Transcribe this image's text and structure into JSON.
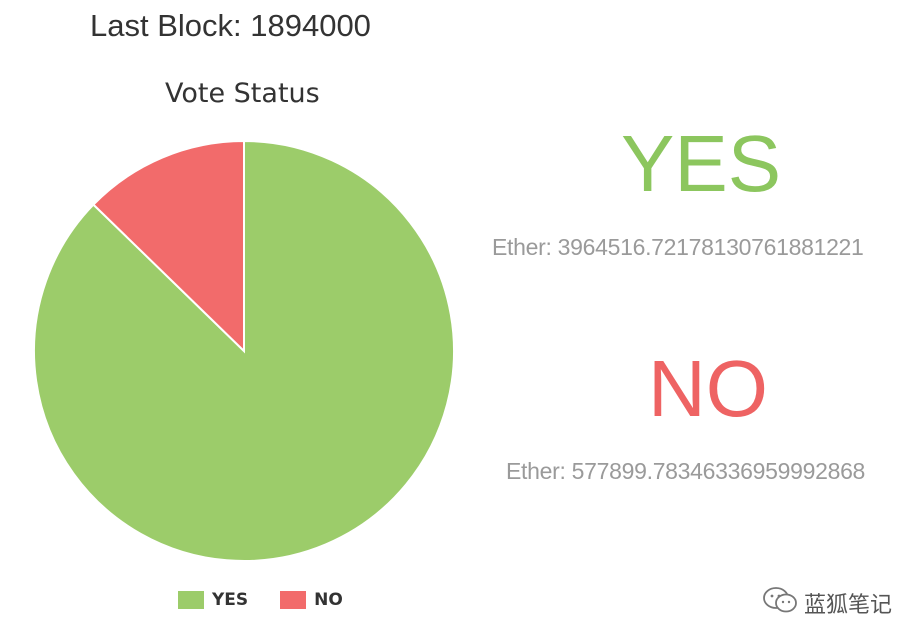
{
  "header": {
    "last_block": "Last Block: 1894000"
  },
  "chart_data": {
    "type": "pie",
    "title": "Vote Status",
    "categories": [
      "YES",
      "NO"
    ],
    "values": [
      3964516.721781308,
      577899.7834633696
    ],
    "colors": [
      "#9ccc6a",
      "#f26b6b"
    ],
    "legend": "bottom"
  },
  "results": {
    "yes": {
      "label": "YES",
      "color": "#8cc65e",
      "ether": "Ether: 3964516.72178130761881221"
    },
    "no": {
      "label": "NO",
      "color": "#ee6363",
      "ether": "Ether: 577899.78346336959992868"
    }
  },
  "watermark": {
    "text": "蓝狐笔记",
    "icon": "wechat-icon"
  }
}
